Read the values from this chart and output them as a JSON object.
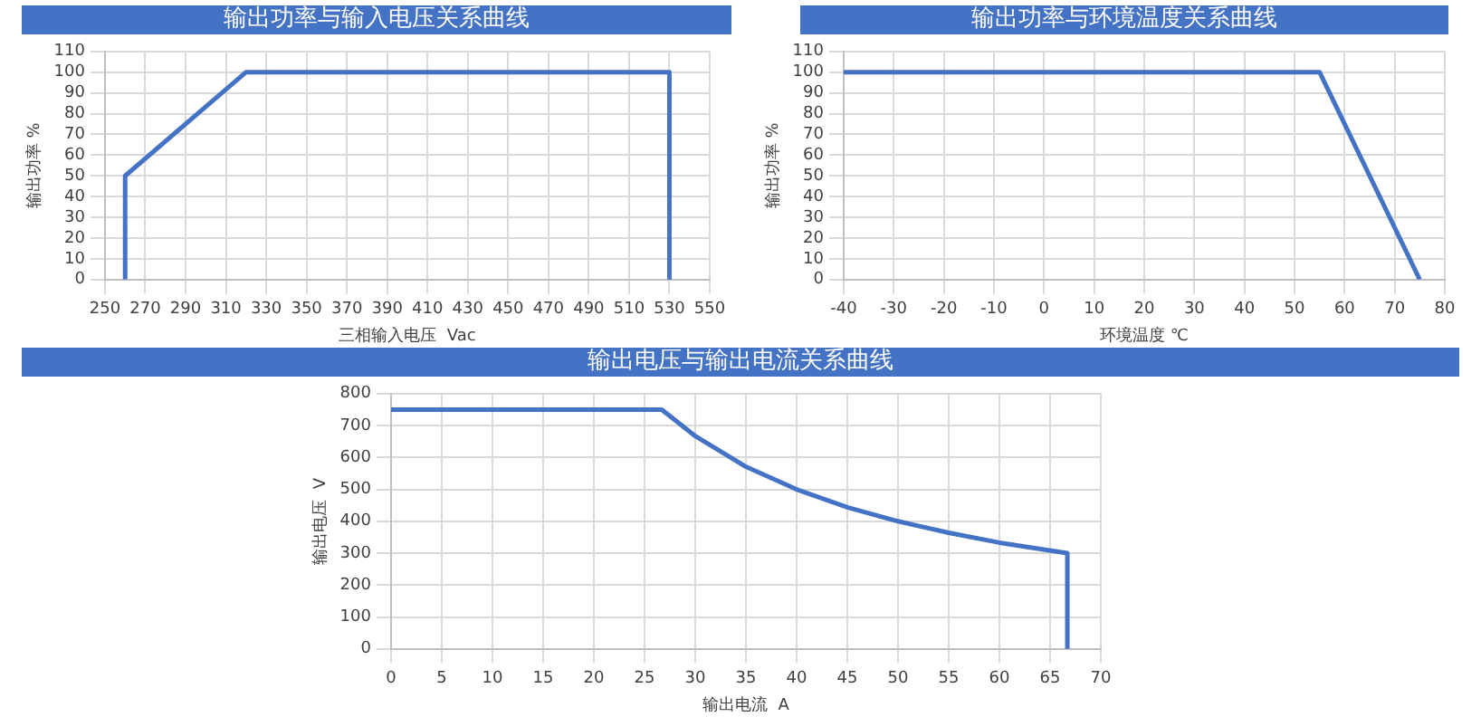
{
  "chart_data": [
    {
      "type": "line",
      "title": "输出功率与输入电压关系曲线",
      "xlabel": "三相输入电压  Vac",
      "ylabel": "输出功率 %",
      "grid": true,
      "legend": false,
      "marker": "none",
      "series": [
        {
          "color": "#4472c4",
          "x": [
            260,
            260,
            320,
            530,
            530
          ],
          "values": [
            0,
            50,
            100,
            100,
            0
          ]
        }
      ],
      "xlim": [
        250,
        550
      ],
      "xticks": [
        250,
        270,
        290,
        310,
        330,
        350,
        370,
        390,
        410,
        430,
        450,
        470,
        490,
        510,
        530,
        550
      ],
      "ylim": [
        0,
        110
      ],
      "yticks": [
        0,
        10,
        20,
        30,
        40,
        50,
        60,
        70,
        80,
        90,
        100,
        110
      ]
    },
    {
      "type": "line",
      "title": "输出功率与环境温度关系曲线",
      "xlabel": "环境温度 ℃",
      "ylabel": "输出功率 %",
      "grid": true,
      "legend": false,
      "marker": "none",
      "series": [
        {
          "color": "#4472c4",
          "x": [
            -40,
            55,
            75
          ],
          "values": [
            100,
            100,
            0
          ]
        }
      ],
      "xlim": [
        -40,
        80
      ],
      "xticks": [
        -40,
        -30,
        -20,
        -10,
        0,
        10,
        20,
        30,
        40,
        50,
        60,
        70,
        80
      ],
      "ylim": [
        0,
        110
      ],
      "yticks": [
        0,
        10,
        20,
        30,
        40,
        50,
        60,
        70,
        80,
        90,
        100,
        110
      ]
    },
    {
      "type": "line",
      "title": "输出电压与输出电流关系曲线",
      "xlabel": "输出电流  A",
      "ylabel": "输出电压  V",
      "grid": true,
      "legend": false,
      "marker": "none",
      "series": [
        {
          "color": "#4472c4",
          "x": [
            0,
            26.7,
            30,
            35,
            40,
            45,
            50,
            55,
            60,
            66.7,
            66.7
          ],
          "values": [
            750,
            750,
            667,
            571,
            500,
            444,
            400,
            364,
            333,
            300,
            0
          ]
        }
      ],
      "xlim": [
        0,
        70
      ],
      "xticks": [
        0,
        5,
        10,
        15,
        20,
        25,
        30,
        35,
        40,
        45,
        50,
        55,
        60,
        65,
        70
      ],
      "ylim": [
        0,
        800
      ],
      "yticks": [
        0,
        100,
        200,
        300,
        400,
        500,
        600,
        700,
        800
      ]
    }
  ]
}
